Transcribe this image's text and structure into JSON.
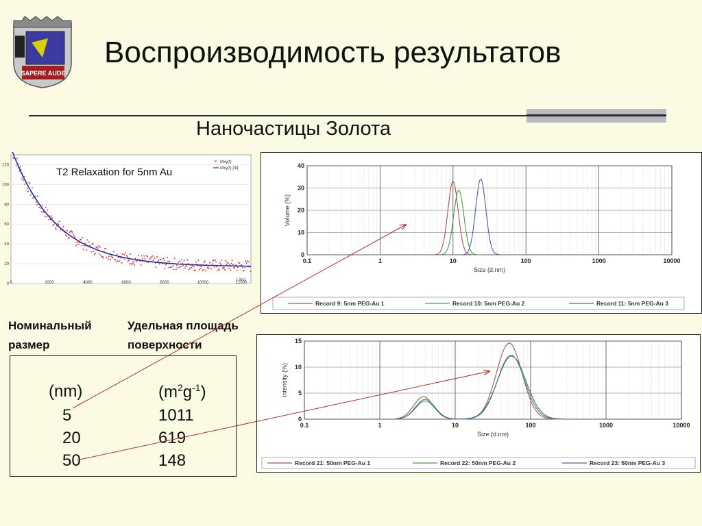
{
  "slide": {
    "title": "Воспроизводимость результатов",
    "subtitle": "Наночастицы Золота",
    "logo_text": "SAPERE AUDE"
  },
  "table": {
    "header_1": "Номинальный размер",
    "header_1_lines": [
      "Номинальный",
      "размер"
    ],
    "header_2_lines": [
      "Удельная площадь",
      "поверхности"
    ],
    "unit_1": "(nm)",
    "unit_2_base": "(m",
    "unit_2_sup1": "2",
    "unit_2_mid": "g",
    "unit_2_sup2": "-1",
    "unit_2_end": ")",
    "rows": [
      {
        "size": "5",
        "area": "1011"
      },
      {
        "size": "20",
        "area": "619"
      },
      {
        "size": "50",
        "area": "148"
      }
    ]
  },
  "chart_data": [
    {
      "type": "scatter",
      "title": "T2 Relaxation for 5nm Au",
      "xlabel": "t /ms",
      "ylabel": "",
      "xlim": [
        0,
        12500
      ],
      "ylim": [
        0,
        130
      ],
      "x_ticks": [
        "0",
        "2000",
        "4000",
        "6000",
        "8000",
        "10000",
        "12000"
      ],
      "y_ticks": [
        "0",
        "20",
        "40",
        "60",
        "80",
        "100",
        "120"
      ],
      "legend_position": "top-right",
      "series": [
        {
          "name": "Mxy(t)",
          "kind": "points",
          "color": "#e02020",
          "model": {
            "a": 120,
            "tau": 2300,
            "c": 17
          },
          "count": 300
        },
        {
          "name": "Mxy(t) [fit]",
          "kind": "line",
          "color": "#2030a0",
          "model": {
            "a": 120,
            "tau": 2300,
            "c": 17
          }
        }
      ]
    },
    {
      "type": "line",
      "xscale": "log",
      "xlabel": "Size (d.nm)",
      "ylabel": "Volume (%)",
      "xlim": [
        0.1,
        10000
      ],
      "ylim": [
        0,
        40
      ],
      "x_ticks": [
        "0.1",
        "1",
        "10",
        "100",
        "1000",
        "10000"
      ],
      "y_ticks": [
        "0",
        "10",
        "20",
        "30",
        "40"
      ],
      "legend_position": "bottom",
      "series": [
        {
          "name": "Record 9: 5nm PEG-Au 1",
          "color": "#b05050",
          "peak_x": 10,
          "peak_y": 33,
          "sigma": 0.07
        },
        {
          "name": "Record 10: 5nm PEG-Au 2",
          "color": "#40a040",
          "peak_x": 12,
          "peak_y": 29,
          "sigma": 0.07
        },
        {
          "name": "Record 11: 5nm PEG-Au 3",
          "color": "#4060b0",
          "peak_x": 24,
          "peak_y": 34,
          "sigma": 0.07
        }
      ]
    },
    {
      "type": "line",
      "xscale": "log",
      "xlabel": "Size (d.nm)",
      "ylabel": "Intensity (%)",
      "xlim": [
        0.1,
        10000
      ],
      "ylim": [
        0,
        15
      ],
      "x_ticks": [
        "0.1",
        "1",
        "10",
        "100",
        "1000",
        "10000"
      ],
      "y_ticks": [
        "0",
        "5",
        "10",
        "15"
      ],
      "legend_position": "bottom",
      "series": [
        {
          "name": "Record 21: 50nm PEG-Au 1",
          "color": "#b05050",
          "peaks": [
            [
              3.8,
              4.3,
              0.13
            ],
            [
              52,
              14.6,
              0.17
            ]
          ]
        },
        {
          "name": "Record 22: 50nm PEG-Au 2",
          "color": "#40a040",
          "peaks": [
            [
              4.0,
              3.8,
              0.13
            ],
            [
              55,
              12.3,
              0.18
            ]
          ]
        },
        {
          "name": "Record 23: 50nm PEG-Au 3",
          "color": "#4060b0",
          "peaks": [
            [
              4.0,
              3.5,
              0.13
            ],
            [
              56,
              12.1,
              0.19
            ]
          ]
        }
      ]
    }
  ]
}
